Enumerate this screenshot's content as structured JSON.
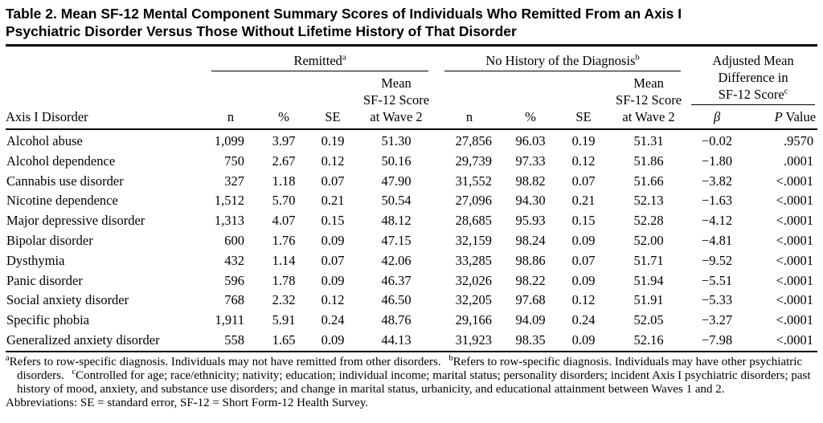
{
  "page": {
    "background": "#ffffff",
    "text_color": "#000000"
  },
  "table": {
    "title_lines": [
      "Table 2. Mean SF-12 Mental Component Summary Scores of Individuals Who Remitted From an Axis I",
      "Psychiatric Disorder Versus Those Without Lifetime History of That Disorder"
    ],
    "groups": {
      "remitted": {
        "label": "Remitted",
        "sup": "a"
      },
      "no_history": {
        "label": "No History of the Diagnosis",
        "sup": "b"
      },
      "adjusted": {
        "lines": [
          "Adjusted Mean",
          "Difference in",
          "SF-12 Score"
        ],
        "sup": "c"
      }
    },
    "columns": {
      "disorder": "Axis I Disorder",
      "n": "n",
      "pct": "%",
      "se": "SE",
      "mean_lines": [
        "Mean",
        "SF-12 Score",
        "at Wave 2"
      ],
      "beta": "β",
      "p_italic": "P",
      "p_rest": "Value"
    },
    "rows": [
      {
        "disorder": "Alcohol abuse",
        "r_n": "1,099",
        "r_pct": "3.97",
        "r_se": "0.19",
        "r_mean": "51.30",
        "nh_n": "27,856",
        "nh_pct": "96.03",
        "nh_se": "0.19",
        "nh_mean": "51.31",
        "beta": "−0.02",
        "p": ".9570"
      },
      {
        "disorder": "Alcohol dependence",
        "r_n": "750",
        "r_pct": "2.67",
        "r_se": "0.12",
        "r_mean": "50.16",
        "nh_n": "29,739",
        "nh_pct": "97.33",
        "nh_se": "0.12",
        "nh_mean": "51.86",
        "beta": "−1.80",
        "p": ".0001"
      },
      {
        "disorder": "Cannabis use disorder",
        "r_n": "327",
        "r_pct": "1.18",
        "r_se": "0.07",
        "r_mean": "47.90",
        "nh_n": "31,552",
        "nh_pct": "98.82",
        "nh_se": "0.07",
        "nh_mean": "51.66",
        "beta": "−3.82",
        "p": "<.0001"
      },
      {
        "disorder": "Nicotine dependence",
        "r_n": "1,512",
        "r_pct": "5.70",
        "r_se": "0.21",
        "r_mean": "50.54",
        "nh_n": "27,096",
        "nh_pct": "94.30",
        "nh_se": "0.21",
        "nh_mean": "52.13",
        "beta": "−1.63",
        "p": "<.0001"
      },
      {
        "disorder": "Major depressive disorder",
        "r_n": "1,313",
        "r_pct": "4.07",
        "r_se": "0.15",
        "r_mean": "48.12",
        "nh_n": "28,685",
        "nh_pct": "95.93",
        "nh_se": "0.15",
        "nh_mean": "52.28",
        "beta": "−4.12",
        "p": "<.0001"
      },
      {
        "disorder": "Bipolar disorder",
        "r_n": "600",
        "r_pct": "1.76",
        "r_se": "0.09",
        "r_mean": "47.15",
        "nh_n": "32,159",
        "nh_pct": "98.24",
        "nh_se": "0.09",
        "nh_mean": "52.00",
        "beta": "−4.81",
        "p": "<.0001"
      },
      {
        "disorder": "Dysthymia",
        "r_n": "432",
        "r_pct": "1.14",
        "r_se": "0.07",
        "r_mean": "42.06",
        "nh_n": "33,285",
        "nh_pct": "98.86",
        "nh_se": "0.07",
        "nh_mean": "51.71",
        "beta": "−9.52",
        "p": "<.0001"
      },
      {
        "disorder": "Panic disorder",
        "r_n": "596",
        "r_pct": "1.78",
        "r_se": "0.09",
        "r_mean": "46.37",
        "nh_n": "32,026",
        "nh_pct": "98.22",
        "nh_se": "0.09",
        "nh_mean": "51.94",
        "beta": "−5.51",
        "p": "<.0001"
      },
      {
        "disorder": "Social anxiety disorder",
        "r_n": "768",
        "r_pct": "2.32",
        "r_se": "0.12",
        "r_mean": "46.50",
        "nh_n": "32,205",
        "nh_pct": "97.68",
        "nh_se": "0.12",
        "nh_mean": "51.91",
        "beta": "−5.33",
        "p": "<.0001"
      },
      {
        "disorder": "Specific phobia",
        "r_n": "1,911",
        "r_pct": "5.91",
        "r_se": "0.24",
        "r_mean": "48.76",
        "nh_n": "29,166",
        "nh_pct": "94.09",
        "nh_se": "0.24",
        "nh_mean": "52.05",
        "beta": "−3.27",
        "p": "<.0001"
      },
      {
        "disorder": "Generalized anxiety disorder",
        "r_n": "558",
        "r_pct": "1.65",
        "r_se": "0.09",
        "r_mean": "44.13",
        "nh_n": "31,923",
        "nh_pct": "98.35",
        "nh_se": "0.09",
        "nh_mean": "52.16",
        "beta": "−7.98",
        "p": "<.0001"
      }
    ],
    "footnotes": [
      {
        "sup": "a",
        "text": "Refers to row-specific diagnosis. Individuals may not have remitted from other disorders."
      },
      {
        "sup": "b",
        "text": "Refers to row-specific diagnosis. Individuals may have other psychiatric disorders."
      },
      {
        "sup": "c",
        "text": "Controlled for age; race/ethnicity; nativity; education; individual income; marital status; personality disorders; incident Axis I psychiatric disorders; past history of mood, anxiety, and substance use disorders; and change in marital status, urbanicity, and educational attainment between Waves 1 and 2."
      }
    ],
    "abbreviations": "Abbreviations: SE = standard error, SF-12 = Short Form-12 Health Survey."
  }
}
